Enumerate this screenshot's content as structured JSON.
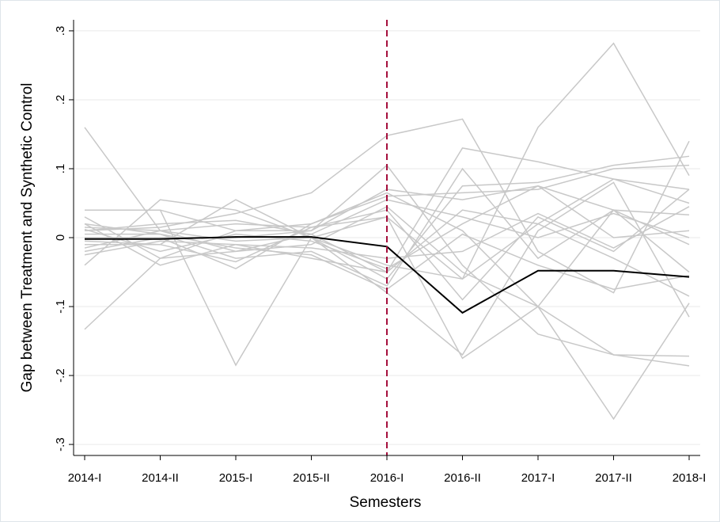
{
  "chart_data": {
    "type": "line",
    "y_label": "Gap between Treatment and Synthetic Control",
    "x_label": "Semesters",
    "categories": [
      "2014-I",
      "2014-II",
      "2015-I",
      "2015-II",
      "2016-I",
      "2016-II",
      "2017-I",
      "2017-II",
      "2018-I"
    ],
    "ylim": [
      -0.316,
      0.316
    ],
    "yticks": [
      {
        "value": -0.3,
        "label": "-.3"
      },
      {
        "value": -0.2,
        "label": "-.2"
      },
      {
        "value": -0.1,
        "label": "-.1"
      },
      0,
      {
        "value": 0.1,
        "label": ".1"
      },
      {
        "value": 0.2,
        "label": ".2"
      },
      {
        "value": 0.3,
        "label": ".3"
      }
    ],
    "grid": true,
    "vline": {
      "x": "2016-I",
      "color": "#a50f3c",
      "dashed": true
    },
    "series": [
      {
        "color": "#c8c8c8",
        "values": [
          0.16,
          0.01,
          -0.02,
          0.005,
          -0.05,
          0.13,
          0.11,
          0.085,
          0.07
        ]
      },
      {
        "color": "#c8c8c8",
        "values": [
          -0.133,
          -0.03,
          0.01,
          0.02,
          0.065,
          0.01,
          -0.1,
          -0.17,
          -0.172
        ]
      },
      {
        "color": "#c8c8c8",
        "values": [
          0.04,
          0.04,
          -0.185,
          0.0,
          0.03,
          -0.175,
          -0.1,
          0.04,
          -0.01
        ]
      },
      {
        "color": "#c8c8c8",
        "values": [
          0.015,
          0.01,
          -0.005,
          0.0,
          -0.04,
          -0.06,
          0.16,
          0.282,
          0.09
        ]
      },
      {
        "color": "#c8c8c8",
        "values": [
          0.03,
          -0.03,
          -0.02,
          -0.01,
          0.045,
          -0.05,
          -0.1,
          -0.263,
          -0.095
        ]
      },
      {
        "color": "#c8c8c8",
        "values": [
          0.01,
          0.015,
          0.035,
          0.065,
          0.148,
          0.172,
          -0.02,
          -0.08,
          0.14
        ]
      },
      {
        "color": "#c8c8c8",
        "values": [
          -0.04,
          0.055,
          0.04,
          0.0,
          -0.06,
          0.075,
          0.08,
          0.105,
          0.118
        ]
      },
      {
        "color": "#c8c8c8",
        "values": [
          0.04,
          0.04,
          0.01,
          0.01,
          0.105,
          -0.04,
          -0.14,
          -0.17,
          -0.186
        ]
      },
      {
        "color": "#c8c8c8",
        "values": [
          -0.01,
          -0.01,
          0.055,
          0.0,
          -0.08,
          -0.17,
          0.01,
          0.08,
          -0.115
        ]
      },
      {
        "color": "#c8c8c8",
        "values": [
          0.0,
          0.0,
          -0.045,
          0.02,
          0.06,
          0.065,
          0.07,
          0.1,
          0.105
        ]
      },
      {
        "color": "#c8c8c8",
        "values": [
          0.02,
          -0.04,
          -0.01,
          -0.03,
          -0.05,
          0.04,
          0.02,
          -0.03,
          -0.085
        ]
      },
      {
        "color": "#c8c8c8",
        "values": [
          -0.02,
          0.0,
          0.0,
          0.01,
          0.07,
          0.055,
          0.075,
          0.0,
          0.01
        ]
      },
      {
        "color": "#c8c8c8",
        "values": [
          0.005,
          0.005,
          -0.03,
          -0.02,
          -0.07,
          0.1,
          -0.03,
          0.04,
          0.033
        ]
      },
      {
        "color": "#c8c8c8",
        "values": [
          -0.015,
          0.01,
          0.02,
          0.015,
          0.03,
          -0.06,
          0.02,
          0.085,
          0.05
        ]
      },
      {
        "color": "#c8c8c8",
        "values": [
          0.012,
          -0.02,
          0.005,
          -0.005,
          -0.045,
          0.02,
          0.075,
          0.04,
          -0.05
        ]
      },
      {
        "color": "#c8c8c8",
        "values": [
          -0.005,
          -0.01,
          -0.035,
          0.015,
          0.04,
          -0.09,
          0.03,
          -0.02,
          0.07
        ]
      },
      {
        "color": "#c8c8c8",
        "values": [
          0.02,
          0.005,
          -0.015,
          -0.025,
          -0.075,
          0.005,
          -0.04,
          -0.075,
          -0.055
        ]
      },
      {
        "color": "#c8c8c8",
        "values": [
          0.01,
          0.02,
          0.025,
          0.005,
          0.055,
          0.03,
          0.0,
          0.035,
          0.0
        ]
      },
      {
        "color": "#c8c8c8",
        "values": [
          -0.025,
          -0.005,
          -0.01,
          -0.015,
          -0.03,
          -0.02,
          0.035,
          -0.015,
          0.045
        ]
      },
      {
        "color": "#000000",
        "values": [
          -0.002,
          -0.002,
          0.001,
          0.001,
          -0.013,
          -0.109,
          -0.048,
          -0.048,
          -0.057
        ]
      }
    ]
  }
}
